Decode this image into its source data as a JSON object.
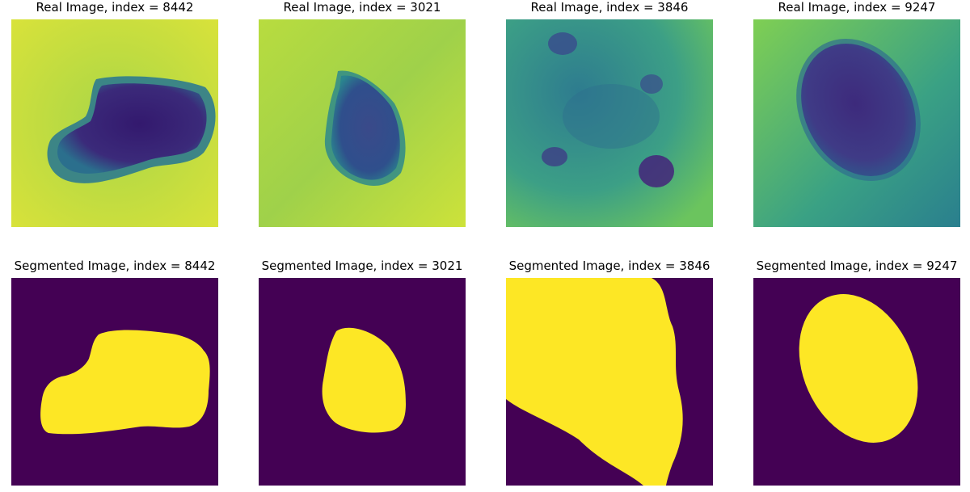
{
  "figure": {
    "real_images": [
      {
        "title": "Real Image, index = 8442"
      },
      {
        "title": "Real Image, index = 3021"
      },
      {
        "title": "Real Image, index = 3846"
      },
      {
        "title": "Real Image, index = 9247"
      }
    ],
    "segmented_images": [
      {
        "title": "Segmented Image, index = 8442"
      },
      {
        "title": "Segmented Image, index = 3021"
      },
      {
        "title": "Segmented Image, index = 3846"
      },
      {
        "title": "Segmented Image, index = 9247"
      }
    ]
  },
  "colors": {
    "mask_background": "#440154",
    "mask_foreground": "#fde725",
    "skin_light": "#c6dc3a",
    "skin_mid": "#7ccb52",
    "lesion_dark": "#3b2a78"
  }
}
